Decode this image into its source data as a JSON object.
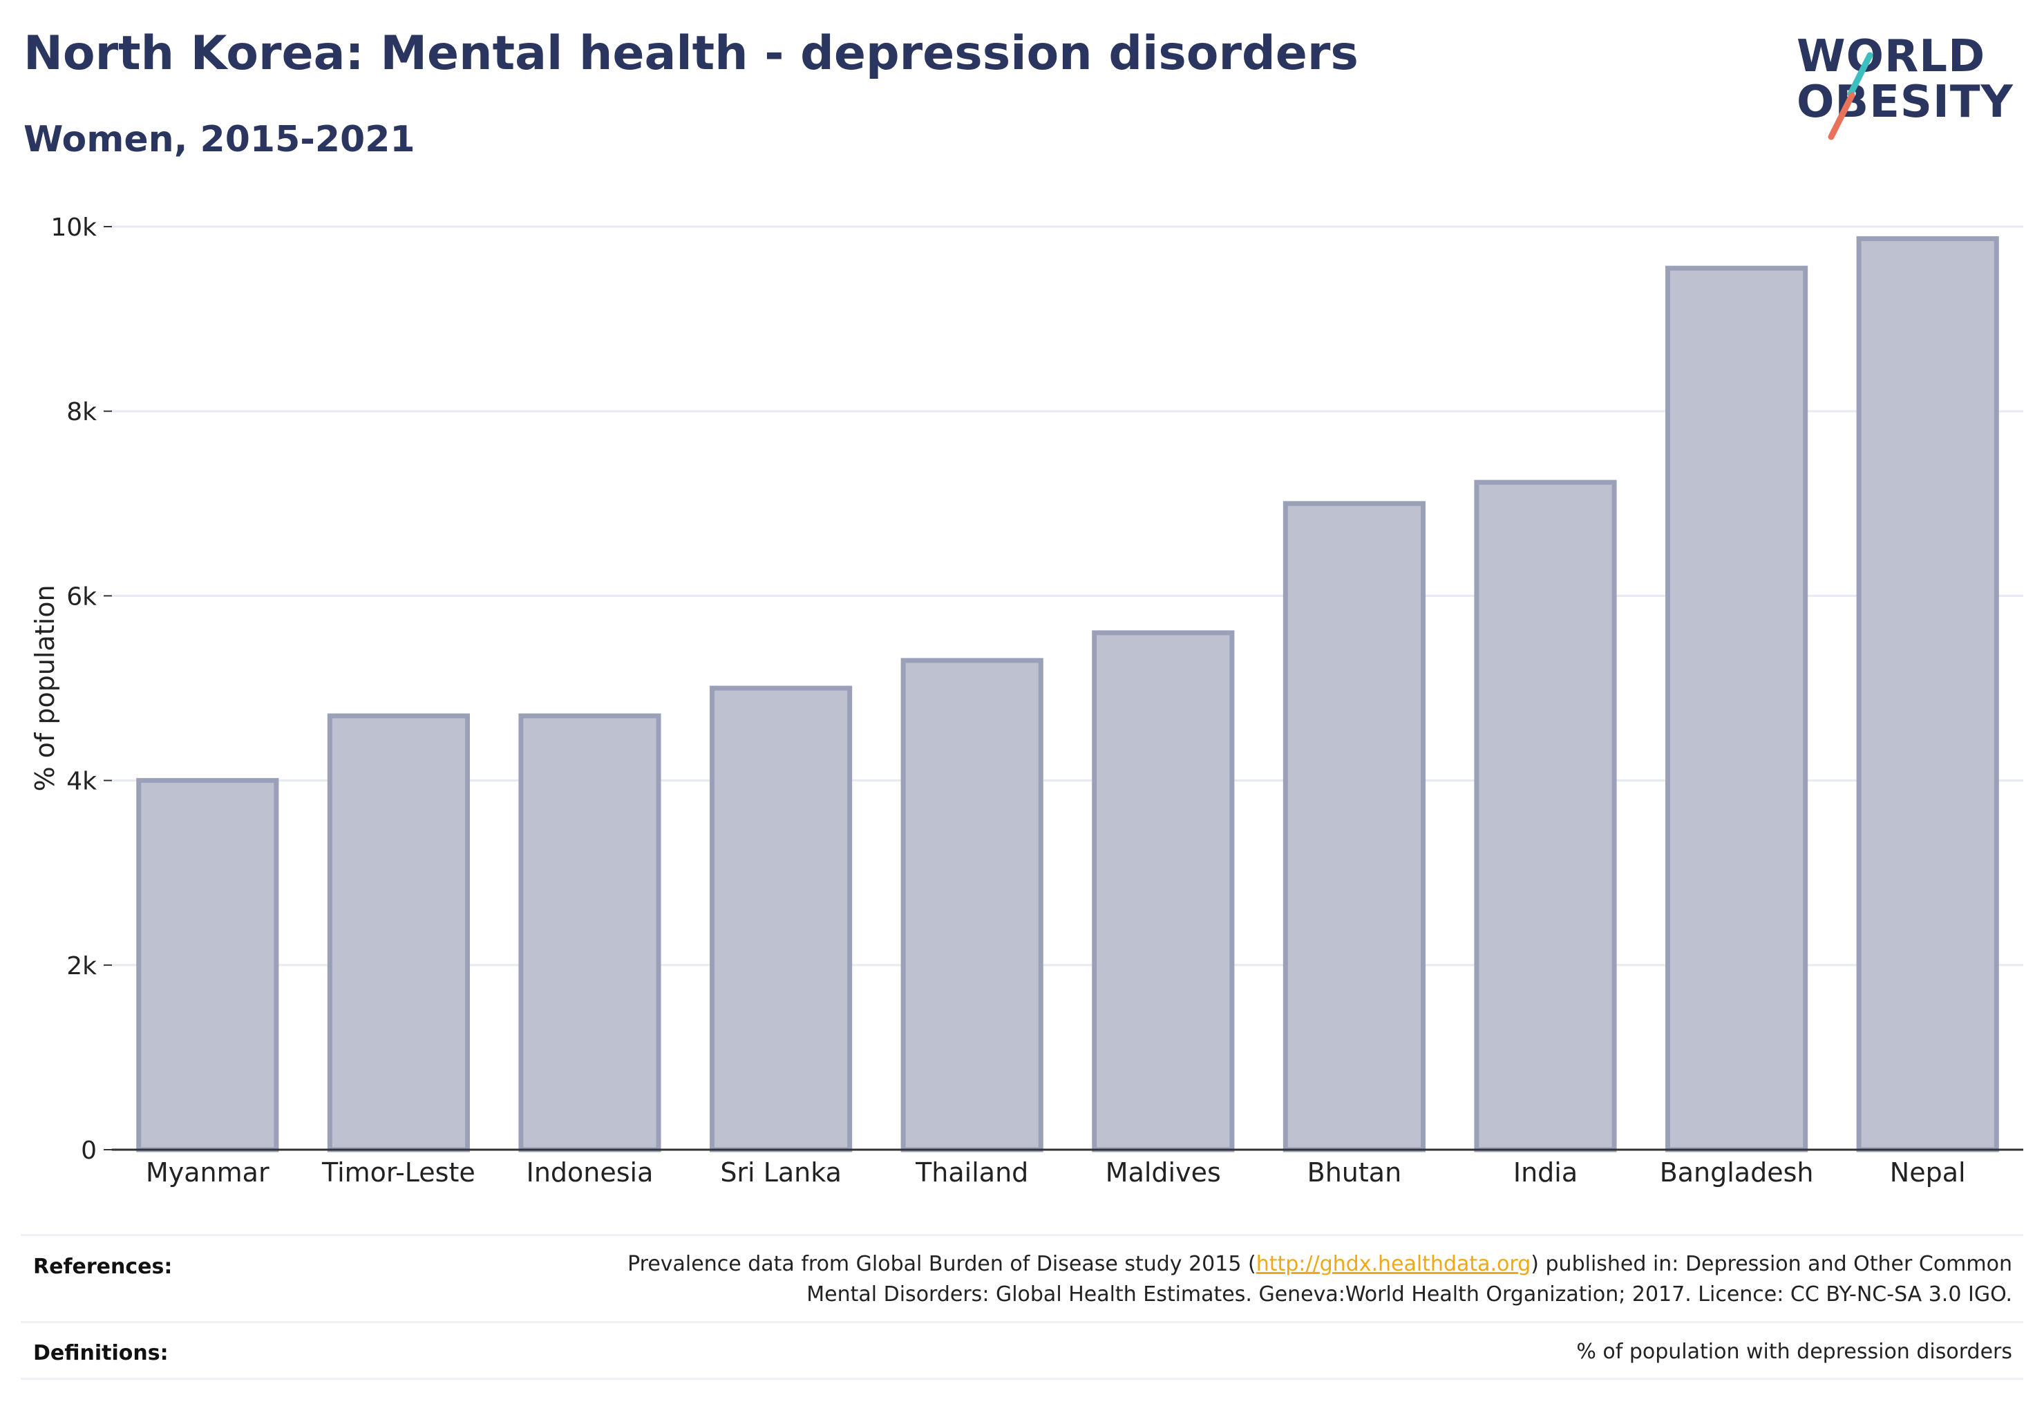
{
  "header": {
    "title": "North Korea: Mental health - depression disorders",
    "subtitle": "Women, 2015-2021"
  },
  "logo": {
    "line1": "WORLD",
    "line2": "OBESITY",
    "slash_colors": [
      "#3dbfbf",
      "#e8735a"
    ]
  },
  "colors": {
    "title": "#2b3660",
    "bar_fill": "#bec2d0",
    "bar_stroke": "#9aa0b8",
    "grid": "#e8eaf1",
    "axis": "#333333",
    "link": "#f0a818"
  },
  "chart_data": {
    "type": "bar",
    "title": "North Korea: Mental health - depression disorders",
    "subtitle": "Women, 2015-2021",
    "xlabel": "",
    "ylabel": "% of population",
    "ylim": [
      0,
      10000
    ],
    "yticks": [
      0,
      2000,
      4000,
      6000,
      8000,
      10000
    ],
    "ytick_labels": [
      "0",
      "2k",
      "4k",
      "6k",
      "8k",
      "10k"
    ],
    "grid": true,
    "legend": "none",
    "categories": [
      "Myanmar",
      "Timor-Leste",
      "Indonesia",
      "Sri Lanka",
      "Thailand",
      "Maldives",
      "Bhutan",
      "India",
      "Bangladesh",
      "Nepal"
    ],
    "values": [
      4000,
      4700,
      4700,
      5000,
      5300,
      5600,
      7000,
      7230,
      9550,
      9870
    ]
  },
  "footer": {
    "references_label": "References:",
    "references_line1_pre": "Prevalence data from Global Burden of Disease study 2015 (",
    "references_link": "http://ghdx.healthdata.org",
    "references_line1_post": ") published in: Depression and Other Common",
    "references_line2": "Mental Disorders: Global Health Estimates. Geneva:World Health Organization; 2017. Licence: CC BY-NC-SA 3.0 IGO.",
    "definitions_label": "Definitions:",
    "definitions_text": "% of population with depression disorders"
  }
}
